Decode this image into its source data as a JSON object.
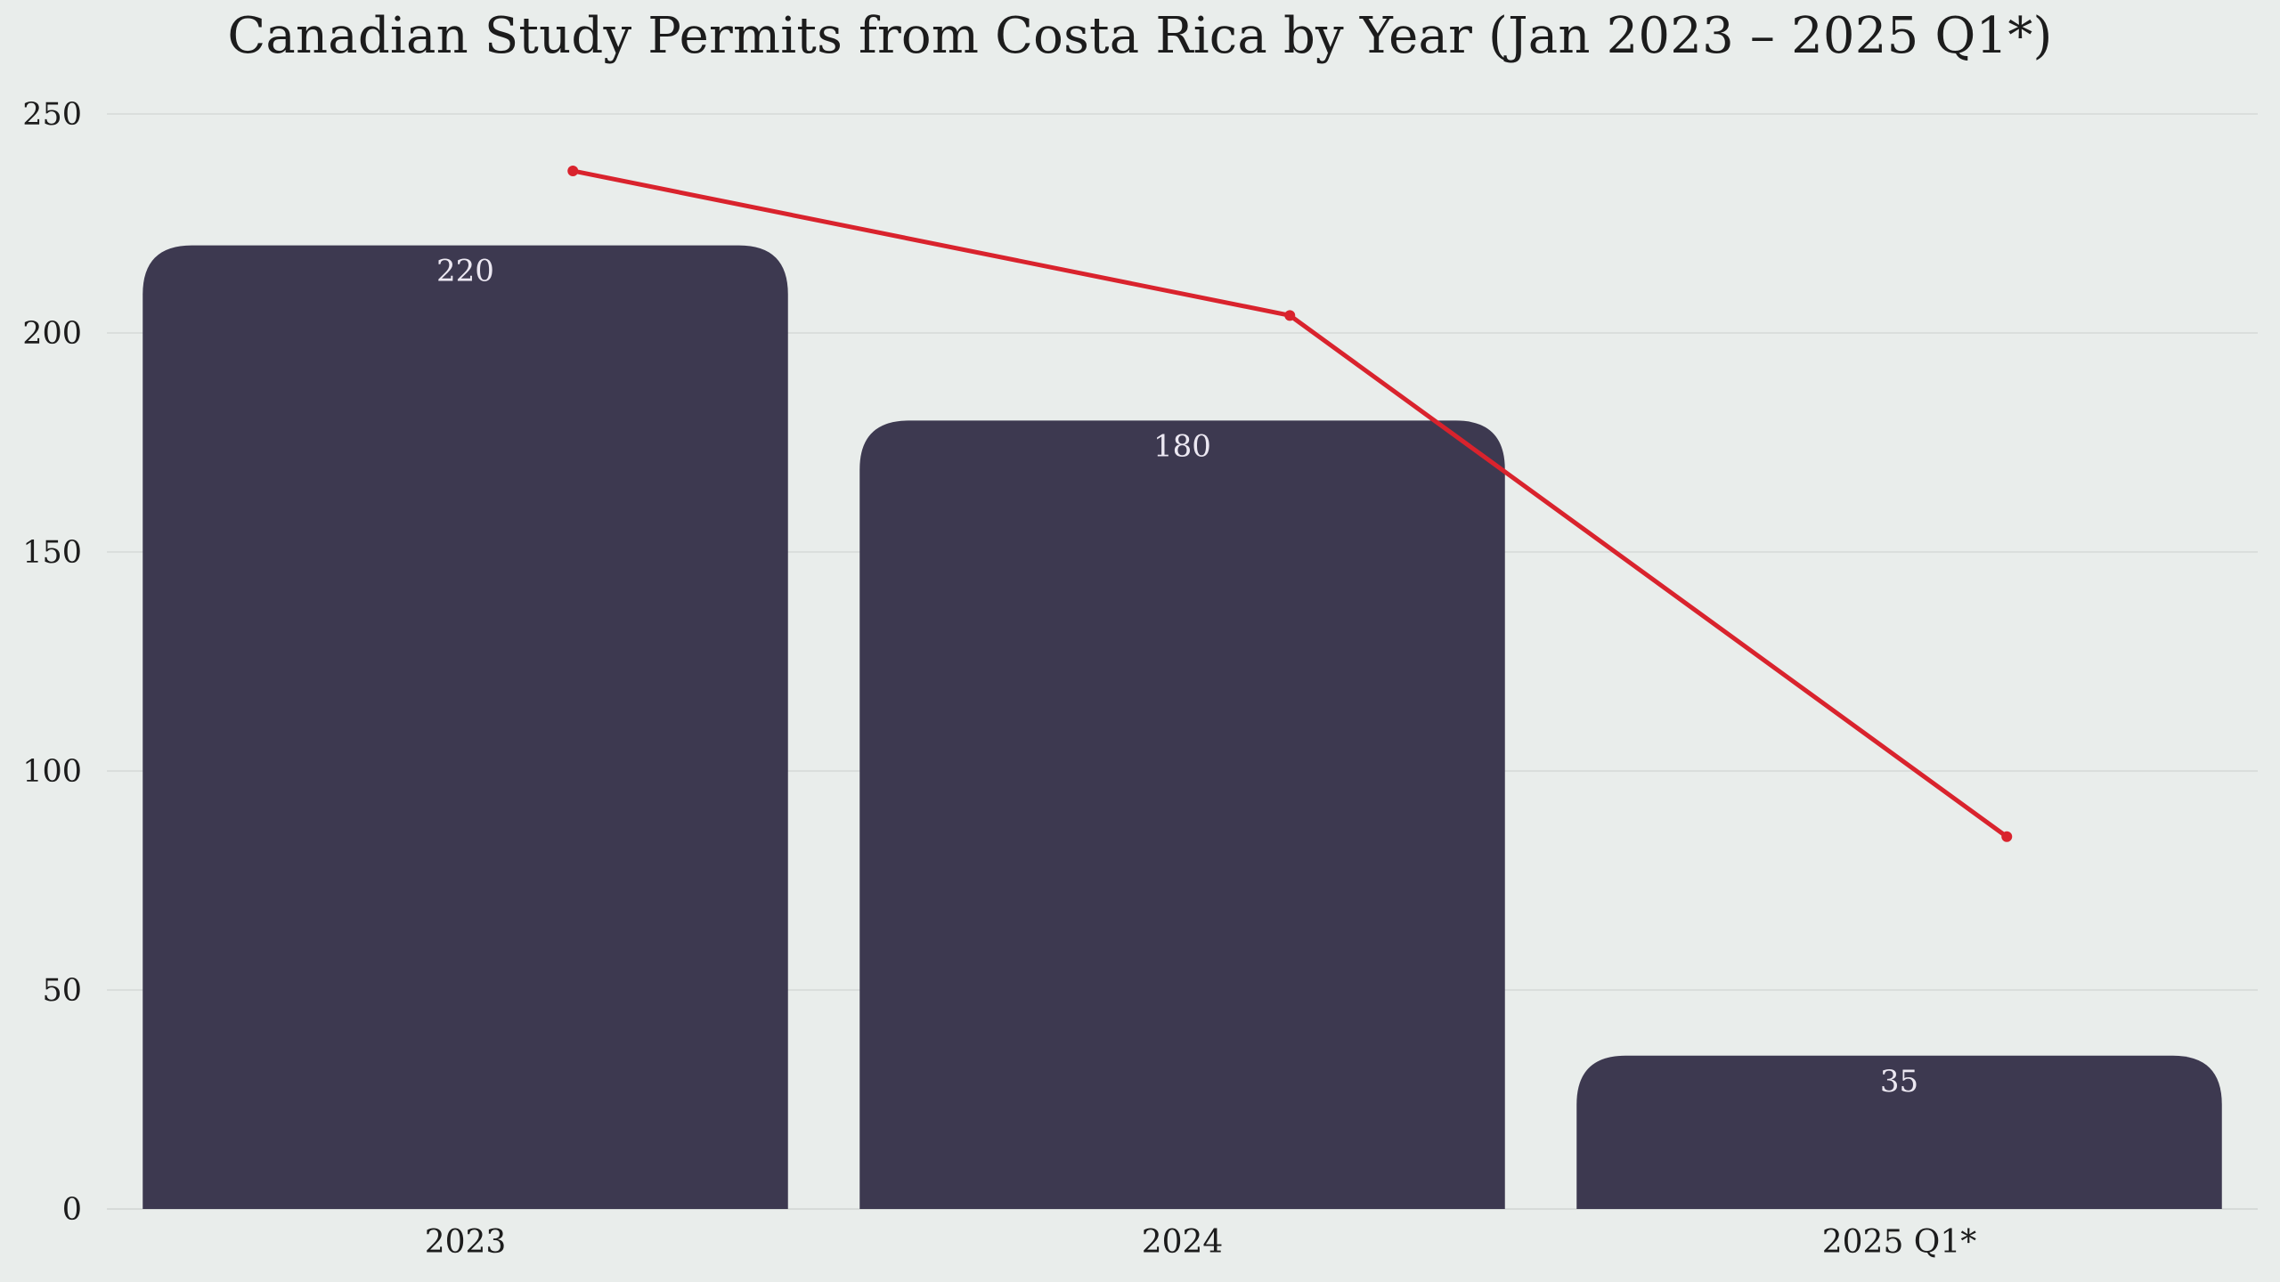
{
  "chart_data": {
    "type": "bar",
    "title": "Canadian Study Permits from Costa Rica by Year (Jan 2023 – 2025 Q1*)",
    "xlabel": "",
    "ylabel": "",
    "categories": [
      "2023",
      "2024",
      "2025 Q1*"
    ],
    "series": [
      {
        "type": "bar",
        "values": [
          220,
          180,
          35
        ],
        "data_labels": [
          "220",
          "180",
          "35"
        ],
        "color": "#3d3950"
      },
      {
        "type": "line",
        "values": [
          237,
          204,
          85
        ],
        "color": "#d9232d",
        "position": "offset-right"
      }
    ],
    "ylim": [
      0,
      250
    ],
    "yticks": [
      0,
      50,
      100,
      150,
      200,
      250
    ],
    "ytick_labels": [
      "0",
      "50",
      "100",
      "150",
      "200",
      "250"
    ],
    "grid": "horizontal",
    "background": "#e9edeb",
    "label_color": "#ece8f2"
  }
}
